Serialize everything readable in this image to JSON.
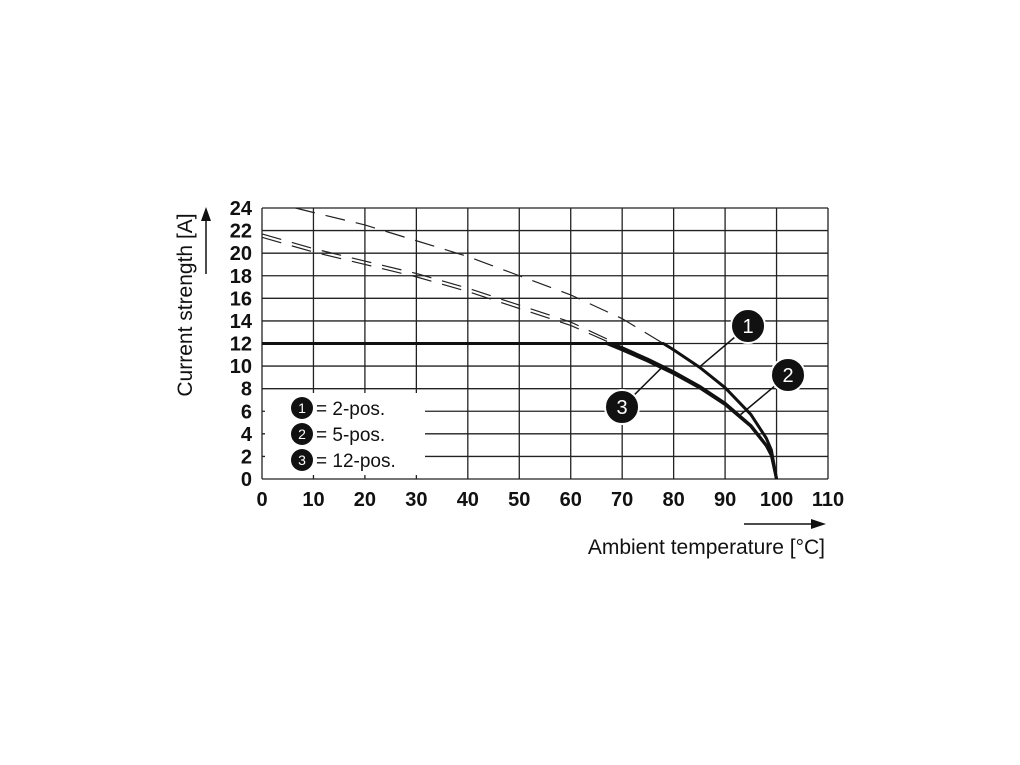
{
  "chart_data": {
    "type": "line",
    "xlabel": "Ambient temperature [°C]",
    "ylabel": "Current strength [A]",
    "xlim": [
      0,
      110
    ],
    "ylim": [
      0,
      24
    ],
    "xticks": [
      0,
      10,
      20,
      30,
      40,
      50,
      60,
      70,
      80,
      90,
      100,
      110
    ],
    "yticks": [
      0,
      2,
      4,
      6,
      8,
      10,
      12,
      14,
      16,
      18,
      20,
      22,
      24
    ],
    "grid": true,
    "legend_position": "bottom-left",
    "legend": [
      {
        "marker": "1",
        "text": "= 2-pos."
      },
      {
        "marker": "2",
        "text": "= 5-pos."
      },
      {
        "marker": "3",
        "text": "= 12-pos."
      }
    ],
    "series": [
      {
        "name": "1",
        "style": "solid",
        "x": [
          0,
          78,
          80,
          85,
          90,
          95,
          98,
          99,
          100
        ],
        "y": [
          12,
          12,
          11.44,
          9.91,
          8.09,
          5.72,
          3.62,
          2.56,
          0
        ]
      },
      {
        "name": "2",
        "style": "solid",
        "x": [
          0,
          68,
          70,
          75,
          80,
          85,
          90,
          95,
          98,
          99,
          100
        ],
        "y": [
          12,
          12,
          11.62,
          10.61,
          9.49,
          8.22,
          6.71,
          4.74,
          3.0,
          2.12,
          0
        ]
      },
      {
        "name": "3",
        "style": "solid",
        "x": [
          0,
          67,
          70,
          75,
          80,
          85,
          90,
          95,
          98,
          99,
          100
        ],
        "y": [
          12,
          12,
          11.44,
          10.44,
          9.34,
          8.09,
          6.6,
          4.67,
          2.95,
          2.09,
          0
        ]
      },
      {
        "name": "1",
        "style": "dashed",
        "x": [
          6.5,
          10,
          20,
          30,
          40,
          50,
          60,
          70,
          78
        ],
        "y": [
          24,
          23.6,
          22.5,
          21.1,
          19.7,
          18.0,
          16.3,
          14.2,
          12
        ]
      },
      {
        "name": "2",
        "style": "dashed",
        "x": [
          0,
          10,
          20,
          30,
          40,
          50,
          60,
          68
        ],
        "y": [
          21.7,
          20.4,
          19.3,
          18.2,
          16.9,
          15.4,
          13.9,
          12.2
        ]
      },
      {
        "name": "3",
        "style": "dashed",
        "x": [
          0,
          10,
          20,
          30,
          40,
          50,
          60,
          68
        ],
        "y": [
          21.4,
          20.1,
          19.0,
          17.9,
          16.6,
          15.1,
          13.6,
          12
        ]
      }
    ],
    "callouts": [
      {
        "label": "1",
        "x": 85,
        "y": 9.91
      },
      {
        "label": "2",
        "x": 93,
        "y": 5.7
      },
      {
        "label": "3",
        "x": 78,
        "y": 10
      }
    ]
  }
}
